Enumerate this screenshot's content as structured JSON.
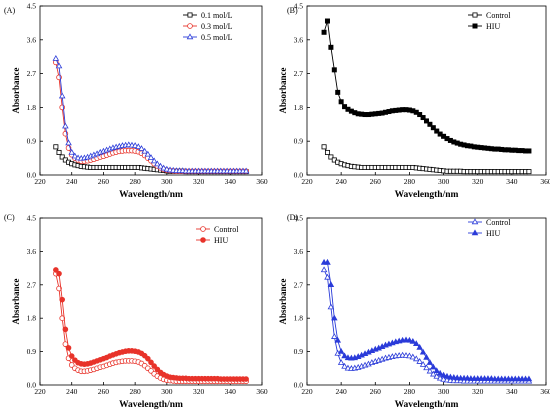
{
  "chart_data": [
    {
      "type": "line",
      "panel_label": "(A)",
      "xlabel": "Wavelength/nm",
      "ylabel": "Absorbance",
      "xlim": [
        220,
        360
      ],
      "ylim": [
        0,
        4.5
      ],
      "xticks": [
        "220",
        "240",
        "260",
        "280",
        "300",
        "320",
        "340",
        "360"
      ],
      "yticks": [
        "0.0",
        "0.9",
        "1.8",
        "2.7",
        "3.6",
        "4.5"
      ],
      "legend_position": "top-right",
      "x": [
        230,
        232,
        234,
        236,
        238,
        240,
        242,
        244,
        246,
        248,
        250,
        252,
        254,
        256,
        258,
        260,
        262,
        264,
        266,
        268,
        270,
        272,
        274,
        276,
        278,
        280,
        282,
        284,
        286,
        288,
        290,
        292,
        294,
        296,
        298,
        300,
        302,
        304,
        306,
        308,
        310,
        312,
        314,
        316,
        318,
        320,
        322,
        324,
        326,
        328,
        330,
        332,
        334,
        336,
        338,
        340,
        342,
        344,
        346,
        348,
        350
      ],
      "series": [
        {
          "name": "0.1 mol/L",
          "color": "#000000",
          "marker": "square-open",
          "values": [
            0.75,
            0.6,
            0.48,
            0.4,
            0.34,
            0.3,
            0.27,
            0.25,
            0.23,
            0.22,
            0.21,
            0.2,
            0.2,
            0.2,
            0.2,
            0.2,
            0.2,
            0.2,
            0.2,
            0.2,
            0.2,
            0.2,
            0.2,
            0.2,
            0.2,
            0.2,
            0.2,
            0.19,
            0.18,
            0.17,
            0.16,
            0.15,
            0.14,
            0.13,
            0.12,
            0.11,
            0.1,
            0.1,
            0.1,
            0.1,
            0.1,
            0.09,
            0.09,
            0.09,
            0.09,
            0.09,
            0.09,
            0.09,
            0.09,
            0.09,
            0.09,
            0.09,
            0.09,
            0.09,
            0.09,
            0.09,
            0.09,
            0.09,
            0.09,
            0.09,
            0.09
          ]
        },
        {
          "name": "0.3 mol/L",
          "color": "#e8332a",
          "marker": "circle-open",
          "values": [
            3.0,
            2.6,
            1.8,
            1.1,
            0.72,
            0.54,
            0.45,
            0.4,
            0.37,
            0.37,
            0.38,
            0.4,
            0.42,
            0.45,
            0.48,
            0.5,
            0.53,
            0.56,
            0.59,
            0.61,
            0.63,
            0.64,
            0.65,
            0.65,
            0.65,
            0.64,
            0.62,
            0.58,
            0.52,
            0.45,
            0.38,
            0.3,
            0.24,
            0.19,
            0.15,
            0.13,
            0.12,
            0.11,
            0.1,
            0.1,
            0.1,
            0.1,
            0.1,
            0.1,
            0.1,
            0.1,
            0.1,
            0.1,
            0.1,
            0.1,
            0.1,
            0.1,
            0.1,
            0.1,
            0.1,
            0.1,
            0.1,
            0.1,
            0.1,
            0.1,
            0.1
          ]
        },
        {
          "name": "0.5 mol/L",
          "color": "#2a3bd9",
          "marker": "triangle-open",
          "values": [
            3.1,
            2.9,
            2.1,
            1.3,
            0.85,
            0.6,
            0.5,
            0.45,
            0.44,
            0.45,
            0.47,
            0.5,
            0.53,
            0.56,
            0.6,
            0.63,
            0.66,
            0.69,
            0.72,
            0.74,
            0.76,
            0.78,
            0.79,
            0.8,
            0.79,
            0.78,
            0.75,
            0.7,
            0.63,
            0.55,
            0.46,
            0.37,
            0.29,
            0.23,
            0.18,
            0.15,
            0.13,
            0.12,
            0.11,
            0.11,
            0.11,
            0.1,
            0.1,
            0.1,
            0.1,
            0.1,
            0.1,
            0.1,
            0.1,
            0.1,
            0.1,
            0.1,
            0.1,
            0.1,
            0.1,
            0.1,
            0.1,
            0.1,
            0.1,
            0.1,
            0.1
          ]
        }
      ]
    },
    {
      "type": "line",
      "panel_label": "(B)",
      "xlabel": "Wavelength/nm",
      "ylabel": "Absorbance",
      "xlim": [
        220,
        360
      ],
      "ylim": [
        0,
        4.5
      ],
      "xticks": [
        "220",
        "240",
        "260",
        "280",
        "300",
        "320",
        "340",
        "360"
      ],
      "yticks": [
        "0.0",
        "0.9",
        "1.8",
        "2.7",
        "3.6",
        "4.5"
      ],
      "legend_position": "top-right",
      "x": [
        230,
        232,
        234,
        236,
        238,
        240,
        242,
        244,
        246,
        248,
        250,
        252,
        254,
        256,
        258,
        260,
        262,
        264,
        266,
        268,
        270,
        272,
        274,
        276,
        278,
        280,
        282,
        284,
        286,
        288,
        290,
        292,
        294,
        296,
        298,
        300,
        302,
        304,
        306,
        308,
        310,
        312,
        314,
        316,
        318,
        320,
        322,
        324,
        326,
        328,
        330,
        332,
        334,
        336,
        338,
        340,
        342,
        344,
        346,
        348,
        350
      ],
      "series": [
        {
          "name": "Control",
          "color": "#000000",
          "marker": "square-open",
          "values": [
            0.75,
            0.6,
            0.48,
            0.4,
            0.34,
            0.3,
            0.27,
            0.25,
            0.23,
            0.22,
            0.21,
            0.2,
            0.2,
            0.2,
            0.2,
            0.2,
            0.2,
            0.2,
            0.2,
            0.2,
            0.2,
            0.2,
            0.2,
            0.2,
            0.2,
            0.2,
            0.2,
            0.19,
            0.18,
            0.17,
            0.16,
            0.15,
            0.14,
            0.13,
            0.12,
            0.11,
            0.1,
            0.1,
            0.1,
            0.1,
            0.1,
            0.09,
            0.09,
            0.09,
            0.09,
            0.09,
            0.09,
            0.09,
            0.09,
            0.09,
            0.09,
            0.09,
            0.09,
            0.09,
            0.09,
            0.09,
            0.09,
            0.09,
            0.09,
            0.09,
            0.09
          ]
        },
        {
          "name": "HIU",
          "color": "#000000",
          "marker": "square-filled",
          "values": [
            3.8,
            4.1,
            3.4,
            2.8,
            2.2,
            1.95,
            1.82,
            1.75,
            1.7,
            1.66,
            1.63,
            1.62,
            1.61,
            1.61,
            1.62,
            1.63,
            1.64,
            1.65,
            1.67,
            1.69,
            1.71,
            1.72,
            1.73,
            1.74,
            1.74,
            1.73,
            1.71,
            1.67,
            1.61,
            1.53,
            1.44,
            1.35,
            1.26,
            1.17,
            1.09,
            1.03,
            0.97,
            0.92,
            0.88,
            0.85,
            0.82,
            0.8,
            0.78,
            0.77,
            0.75,
            0.74,
            0.73,
            0.72,
            0.71,
            0.7,
            0.69,
            0.69,
            0.68,
            0.67,
            0.67,
            0.66,
            0.66,
            0.65,
            0.65,
            0.64,
            0.64
          ]
        }
      ]
    },
    {
      "type": "line",
      "panel_label": "(C)",
      "xlabel": "Wavelength/nm",
      "ylabel": "Absorbance",
      "xlim": [
        220,
        360
      ],
      "ylim": [
        0,
        4.5
      ],
      "xticks": [
        "220",
        "240",
        "260",
        "280",
        "300",
        "320",
        "340",
        "360"
      ],
      "yticks": [
        "0.0",
        "0.9",
        "1.8",
        "2.7",
        "3.6",
        "4.5"
      ],
      "legend_position": "top-right",
      "x": [
        230,
        232,
        234,
        236,
        238,
        240,
        242,
        244,
        246,
        248,
        250,
        252,
        254,
        256,
        258,
        260,
        262,
        264,
        266,
        268,
        270,
        272,
        274,
        276,
        278,
        280,
        282,
        284,
        286,
        288,
        290,
        292,
        294,
        296,
        298,
        300,
        302,
        304,
        306,
        308,
        310,
        312,
        314,
        316,
        318,
        320,
        322,
        324,
        326,
        328,
        330,
        332,
        334,
        336,
        338,
        340,
        342,
        344,
        346,
        348,
        350
      ],
      "series": [
        {
          "name": "Control",
          "color": "#e8332a",
          "marker": "circle-open",
          "values": [
            3.0,
            2.6,
            1.8,
            1.1,
            0.72,
            0.54,
            0.45,
            0.4,
            0.37,
            0.37,
            0.38,
            0.4,
            0.42,
            0.45,
            0.48,
            0.5,
            0.53,
            0.56,
            0.59,
            0.61,
            0.63,
            0.64,
            0.65,
            0.65,
            0.65,
            0.64,
            0.62,
            0.58,
            0.52,
            0.45,
            0.38,
            0.3,
            0.24,
            0.19,
            0.15,
            0.13,
            0.12,
            0.11,
            0.1,
            0.1,
            0.1,
            0.1,
            0.1,
            0.1,
            0.1,
            0.1,
            0.1,
            0.1,
            0.1,
            0.1,
            0.1,
            0.1,
            0.1,
            0.1,
            0.1,
            0.1,
            0.1,
            0.1,
            0.1,
            0.1,
            0.1
          ]
        },
        {
          "name": "HIU",
          "color": "#e8332a",
          "marker": "circle-filled",
          "values": [
            3.1,
            3.0,
            2.3,
            1.5,
            1.0,
            0.78,
            0.67,
            0.6,
            0.57,
            0.56,
            0.57,
            0.59,
            0.62,
            0.65,
            0.68,
            0.71,
            0.74,
            0.78,
            0.81,
            0.84,
            0.87,
            0.89,
            0.91,
            0.92,
            0.92,
            0.91,
            0.89,
            0.85,
            0.79,
            0.71,
            0.61,
            0.51,
            0.42,
            0.34,
            0.28,
            0.24,
            0.21,
            0.2,
            0.19,
            0.18,
            0.18,
            0.18,
            0.17,
            0.17,
            0.17,
            0.17,
            0.17,
            0.17,
            0.17,
            0.17,
            0.17,
            0.17,
            0.16,
            0.16,
            0.16,
            0.16,
            0.16,
            0.16,
            0.16,
            0.16,
            0.16
          ]
        }
      ]
    },
    {
      "type": "line",
      "panel_label": "(D)",
      "xlabel": "Wavelength/nm",
      "ylabel": "Absorbance",
      "xlim": [
        220,
        360
      ],
      "ylim": [
        0,
        4.5
      ],
      "xticks": [
        "220",
        "240",
        "260",
        "280",
        "300",
        "320",
        "340",
        "360"
      ],
      "yticks": [
        "0.0",
        "0.9",
        "1.8",
        "2.7",
        "3.6",
        "4.5"
      ],
      "legend_position": "top-right",
      "x": [
        230,
        232,
        234,
        236,
        238,
        240,
        242,
        244,
        246,
        248,
        250,
        252,
        254,
        256,
        258,
        260,
        262,
        264,
        266,
        268,
        270,
        272,
        274,
        276,
        278,
        280,
        282,
        284,
        286,
        288,
        290,
        292,
        294,
        296,
        298,
        300,
        302,
        304,
        306,
        308,
        310,
        312,
        314,
        316,
        318,
        320,
        322,
        324,
        326,
        328,
        330,
        332,
        334,
        336,
        338,
        340,
        342,
        344,
        346,
        348,
        350
      ],
      "series": [
        {
          "name": "Control",
          "color": "#2a3bd9",
          "marker": "triangle-open",
          "values": [
            3.1,
            2.9,
            2.1,
            1.3,
            0.85,
            0.6,
            0.5,
            0.45,
            0.44,
            0.45,
            0.47,
            0.5,
            0.53,
            0.56,
            0.6,
            0.63,
            0.66,
            0.69,
            0.72,
            0.74,
            0.76,
            0.78,
            0.79,
            0.8,
            0.79,
            0.78,
            0.75,
            0.7,
            0.63,
            0.55,
            0.46,
            0.37,
            0.29,
            0.23,
            0.18,
            0.15,
            0.13,
            0.12,
            0.11,
            0.11,
            0.11,
            0.1,
            0.1,
            0.1,
            0.1,
            0.1,
            0.1,
            0.1,
            0.1,
            0.1,
            0.1,
            0.1,
            0.1,
            0.1,
            0.1,
            0.1,
            0.1,
            0.1,
            0.1,
            0.1,
            0.1
          ]
        },
        {
          "name": "HIU",
          "color": "#2a3bd9",
          "marker": "triangle-filled",
          "values": [
            3.3,
            3.3,
            2.7,
            1.8,
            1.2,
            0.9,
            0.78,
            0.73,
            0.72,
            0.73,
            0.76,
            0.8,
            0.84,
            0.88,
            0.92,
            0.96,
            0.99,
            1.03,
            1.07,
            1.1,
            1.13,
            1.16,
            1.18,
            1.2,
            1.21,
            1.2,
            1.17,
            1.11,
            1.01,
            0.88,
            0.74,
            0.6,
            0.48,
            0.38,
            0.31,
            0.26,
            0.23,
            0.21,
            0.2,
            0.19,
            0.18,
            0.18,
            0.18,
            0.17,
            0.17,
            0.17,
            0.17,
            0.17,
            0.17,
            0.17,
            0.16,
            0.16,
            0.16,
            0.16,
            0.16,
            0.16,
            0.16,
            0.16,
            0.16,
            0.16,
            0.16
          ]
        }
      ]
    }
  ]
}
